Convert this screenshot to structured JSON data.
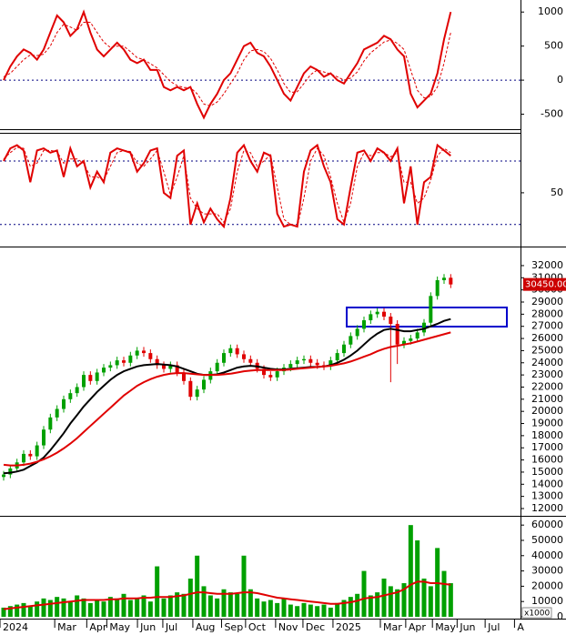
{
  "chart_data": [
    {
      "type": "line",
      "ylim": [
        -720,
        1150
      ],
      "yticks": [
        -500,
        0,
        500,
        1000
      ],
      "levels": [
        0
      ],
      "series": [
        {
          "color": "#e00000",
          "style": "solid",
          "values": [
            0,
            200,
            350,
            450,
            400,
            300,
            450,
            700,
            950,
            850,
            650,
            750,
            1000,
            700,
            450,
            350,
            450,
            550,
            450,
            300,
            250,
            300,
            150,
            150,
            -100,
            -150,
            -100,
            -150,
            -100,
            -350,
            -550,
            -350,
            -200,
            0,
            100,
            300,
            500,
            550,
            400,
            350,
            200,
            0,
            -200,
            -300,
            -100,
            100,
            200,
            150,
            50,
            100,
            0,
            -50,
            100,
            250,
            450,
            500,
            550,
            650,
            600,
            450,
            350,
            -200,
            -400,
            -300,
            -200,
            100,
            600,
            1000
          ]
        },
        {
          "color": "#e00000",
          "style": "dashed",
          "values": [
            50,
            100,
            200,
            300,
            370,
            360,
            380,
            500,
            700,
            820,
            780,
            730,
            850,
            850,
            700,
            560,
            480,
            500,
            500,
            420,
            330,
            300,
            240,
            180,
            80,
            -20,
            -80,
            -110,
            -110,
            -200,
            -350,
            -380,
            -320,
            -200,
            -50,
            100,
            300,
            430,
            450,
            420,
            320,
            150,
            -50,
            -180,
            -170,
            -50,
            80,
            150,
            120,
            90,
            50,
            0,
            30,
            120,
            280,
            400,
            480,
            560,
            590,
            540,
            450,
            150,
            -150,
            -260,
            -240,
            -100,
            250,
            700
          ]
        }
      ]
    },
    {
      "type": "line",
      "ylim": [
        0,
        105
      ],
      "yticks": [
        50
      ],
      "levels": [
        20,
        80
      ],
      "series": [
        {
          "color": "#e00000",
          "style": "solid",
          "values": [
            80,
            92,
            95,
            90,
            60,
            90,
            92,
            88,
            90,
            65,
            92,
            75,
            80,
            55,
            70,
            60,
            88,
            92,
            90,
            88,
            70,
            78,
            90,
            92,
            50,
            45,
            85,
            90,
            20,
            40,
            22,
            35,
            25,
            18,
            45,
            88,
            95,
            80,
            70,
            88,
            85,
            30,
            18,
            20,
            18,
            70,
            90,
            95,
            75,
            60,
            25,
            20,
            55,
            88,
            90,
            80,
            92,
            88,
            80,
            92,
            40,
            75,
            20,
            60,
            65,
            95,
            90,
            85
          ]
        },
        {
          "color": "#e00000",
          "style": "dashed",
          "values": [
            82,
            88,
            93,
            92,
            75,
            78,
            90,
            90,
            89,
            78,
            82,
            82,
            78,
            65,
            65,
            62,
            75,
            88,
            90,
            89,
            78,
            75,
            82,
            90,
            70,
            48,
            65,
            85,
            45,
            35,
            30,
            30,
            30,
            22,
            35,
            70,
            90,
            88,
            75,
            80,
            86,
            55,
            25,
            20,
            18,
            45,
            80,
            92,
            85,
            65,
            40,
            22,
            40,
            75,
            88,
            85,
            88,
            88,
            84,
            88,
            60,
            60,
            40,
            45,
            62,
            85,
            92,
            88
          ]
        }
      ]
    },
    {
      "type": "candlestick",
      "ylim": [
        11550,
        33270
      ],
      "yticks": [
        12000,
        13000,
        14000,
        15000,
        16000,
        17000,
        18000,
        19000,
        20000,
        21000,
        22000,
        23000,
        24000,
        25000,
        26000,
        27000,
        28000,
        29000,
        30000,
        31000,
        32000
      ],
      "up_color": "#00a000",
      "down_color": "#e00000",
      "open": [
        14600,
        14800,
        15300,
        15800,
        16500,
        16300,
        17200,
        18500,
        19500,
        20200,
        21000,
        21500,
        22000,
        23000,
        22500,
        23200,
        23600,
        23800,
        24200,
        24000,
        24600,
        25000,
        24800,
        24300,
        23800,
        23500,
        23800,
        23200,
        22500,
        21200,
        21800,
        22600,
        23300,
        24000,
        24800,
        25200,
        24700,
        24300,
        24000,
        23500,
        23000,
        22800,
        23300,
        23600,
        23900,
        24200,
        24300,
        24000,
        23800,
        23700,
        24200,
        24800,
        25500,
        26200,
        26800,
        27500,
        28000,
        28200,
        27800,
        27200,
        25500,
        25800,
        26000,
        26500,
        27300,
        29500,
        30800,
        31000
      ],
      "high": [
        15100,
        15600,
        16100,
        16800,
        16800,
        17500,
        18800,
        19800,
        20500,
        21300,
        21800,
        22300,
        23300,
        23300,
        23500,
        23900,
        24100,
        24500,
        24500,
        24900,
        25300,
        25300,
        25100,
        24600,
        24100,
        24100,
        24100,
        23500,
        22800,
        22100,
        22900,
        23600,
        24300,
        25100,
        25500,
        25500,
        25000,
        24600,
        24300,
        23800,
        23300,
        23600,
        23900,
        24200,
        24500,
        24600,
        24600,
        24300,
        24100,
        24500,
        25100,
        25800,
        26500,
        27100,
        27800,
        28300,
        28500,
        28500,
        28100,
        27500,
        26100,
        26300,
        26800,
        27600,
        29800,
        31100,
        31300,
        31300
      ],
      "low": [
        14300,
        14500,
        15000,
        15500,
        16000,
        16000,
        16900,
        18200,
        19200,
        19900,
        20700,
        21200,
        21700,
        22200,
        22200,
        22900,
        23300,
        23500,
        23700,
        23700,
        24300,
        24500,
        24000,
        23500,
        23200,
        23200,
        22900,
        22200,
        20900,
        20900,
        21500,
        22300,
        23000,
        23700,
        24500,
        24400,
        24000,
        23700,
        23200,
        22700,
        22500,
        22500,
        23000,
        23300,
        23600,
        23900,
        23700,
        23500,
        23400,
        23400,
        23900,
        24500,
        25200,
        25900,
        26500,
        27200,
        27700,
        27500,
        22400,
        23900,
        25200,
        25500,
        25700,
        26200,
        27000,
        29200,
        30500,
        30150
      ],
      "close": [
        14800,
        15300,
        15800,
        16500,
        16300,
        17200,
        18500,
        19500,
        20200,
        21000,
        21500,
        22000,
        23000,
        22500,
        23200,
        23600,
        23800,
        24200,
        24000,
        24600,
        25000,
        24800,
        24300,
        23800,
        23500,
        23800,
        23200,
        22500,
        21200,
        21800,
        22600,
        23300,
        24000,
        24800,
        25200,
        24700,
        24300,
        24000,
        23500,
        23000,
        22800,
        23300,
        23600,
        23900,
        24200,
        24300,
        24000,
        23800,
        23700,
        24200,
        24800,
        25500,
        26200,
        26800,
        27500,
        28000,
        28200,
        27800,
        27200,
        25500,
        25800,
        26000,
        26500,
        27300,
        29500,
        30800,
        31000,
        30450
      ],
      "lines": [
        {
          "color": "#000000",
          "values": [
            14900,
            14950,
            15050,
            15200,
            15500,
            15800,
            16200,
            16800,
            17500,
            18200,
            19000,
            19700,
            20400,
            21000,
            21600,
            22100,
            22600,
            23000,
            23300,
            23500,
            23700,
            23800,
            23850,
            23900,
            23850,
            23800,
            23700,
            23500,
            23300,
            23100,
            23000,
            23000,
            23050,
            23200,
            23400,
            23600,
            23700,
            23750,
            23700,
            23600,
            23500,
            23450,
            23450,
            23500,
            23550,
            23600,
            23650,
            23650,
            23700,
            23800,
            24000,
            24250,
            24600,
            25000,
            25500,
            26000,
            26400,
            26700,
            26800,
            26700,
            26600,
            26600,
            26700,
            26800,
            27000,
            27200,
            27450,
            27600
          ]
        },
        {
          "color": "#e00000",
          "values": [
            15600,
            15550,
            15550,
            15600,
            15700,
            15850,
            16050,
            16300,
            16600,
            16950,
            17350,
            17800,
            18300,
            18800,
            19300,
            19800,
            20300,
            20800,
            21300,
            21700,
            22100,
            22400,
            22650,
            22850,
            23000,
            23100,
            23150,
            23150,
            23100,
            23050,
            23000,
            23000,
            23000,
            23050,
            23100,
            23200,
            23300,
            23350,
            23400,
            23400,
            23400,
            23400,
            23400,
            23450,
            23500,
            23550,
            23600,
            23650,
            23700,
            23750,
            23850,
            23950,
            24100,
            24300,
            24500,
            24700,
            24950,
            25150,
            25300,
            25400,
            25500,
            25600,
            25750,
            25900,
            26050,
            26200,
            26350,
            26500
          ]
        }
      ],
      "last_price": {
        "value": 30450,
        "label": "30450.00"
      }
    },
    {
      "type": "bar",
      "ylim": [
        0,
        64270
      ],
      "yticks": [
        0,
        10000,
        20000,
        30000,
        40000,
        50000,
        60000
      ],
      "unit_label": "x1000",
      "color": "#00a000",
      "values": [
        6000,
        7000,
        8000,
        9000,
        7000,
        10000,
        12000,
        11000,
        13000,
        12000,
        10000,
        14000,
        12000,
        9000,
        11000,
        10000,
        13000,
        12000,
        15000,
        11000,
        12000,
        14000,
        10000,
        33000,
        12000,
        14000,
        16000,
        15000,
        25000,
        40000,
        20000,
        14000,
        12000,
        18000,
        16000,
        15000,
        40000,
        18000,
        12000,
        10000,
        11000,
        9000,
        12000,
        8000,
        7000,
        9000,
        8000,
        7000,
        8000,
        6000,
        9000,
        11000,
        13000,
        15000,
        30000,
        14000,
        16000,
        25000,
        20000,
        18000,
        22000,
        60000,
        50000,
        25000,
        20000,
        45000,
        30000,
        22000
      ],
      "lines": [
        {
          "color": "#e00000",
          "values": [
            5000,
            5500,
            6000,
            6500,
            7000,
            7500,
            8000,
            8500,
            9000,
            9500,
            10000,
            10500,
            11000,
            11000,
            11000,
            11000,
            11500,
            11500,
            12000,
            12000,
            12000,
            12500,
            12500,
            13000,
            13000,
            13000,
            13500,
            14000,
            15000,
            16000,
            16000,
            15500,
            15000,
            15000,
            15000,
            15500,
            16000,
            16000,
            15500,
            14500,
            13500,
            12500,
            12000,
            11500,
            11000,
            10500,
            10000,
            9500,
            9000,
            8500,
            8500,
            9000,
            9500,
            10500,
            12000,
            12500,
            13000,
            14000,
            15000,
            16000,
            18000,
            21000,
            23000,
            23000,
            22000,
            22000,
            21500,
            21000
          ]
        }
      ],
      "xlim": [
        0,
        78
      ],
      "xticks": [
        {
          "value": 0,
          "label": "2024"
        },
        {
          "value": 8.2,
          "label": "Mar"
        },
        {
          "value": 13,
          "label": "Apr"
        },
        {
          "value": 16,
          "label": "May"
        },
        {
          "value": 20.6,
          "label": "Jun"
        },
        {
          "value": 24.4,
          "label": "Jul"
        },
        {
          "value": 28.9,
          "label": "Aug"
        },
        {
          "value": 33.2,
          "label": "Sep"
        },
        {
          "value": 36.8,
          "label": "Oct"
        },
        {
          "value": 41.3,
          "label": "Nov"
        },
        {
          "value": 45.4,
          "label": "Dec"
        },
        {
          "value": 49.9,
          "label": "2025"
        },
        {
          "value": 57,
          "label": "Mar"
        },
        {
          "value": 60.8,
          "label": "Apr"
        },
        {
          "value": 64.8,
          "label": "May"
        },
        {
          "value": 68.5,
          "label": "Jun"
        },
        {
          "value": 72.7,
          "label": "Jul"
        },
        {
          "value": 77.1,
          "label": "A"
        }
      ]
    }
  ]
}
